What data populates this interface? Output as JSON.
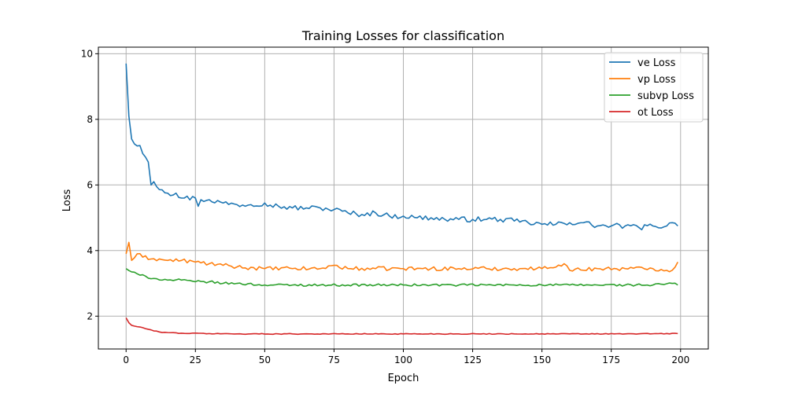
{
  "chart_data": {
    "type": "line",
    "title": "Training Losses for classification",
    "xlabel": "Epoch",
    "ylabel": "Loss",
    "xlim": [
      -10,
      210
    ],
    "ylim": [
      1.0,
      10.2
    ],
    "xticks": [
      0,
      25,
      50,
      75,
      100,
      125,
      150,
      175,
      200
    ],
    "yticks": [
      2,
      4,
      6,
      8,
      10
    ],
    "grid": true,
    "legend_position": "top-right",
    "series": [
      {
        "name": "ve Loss",
        "color": "#1f77b4",
        "anchors": [
          [
            0,
            9.7
          ],
          [
            1,
            8.1
          ],
          [
            2,
            7.4
          ],
          [
            3,
            7.25
          ],
          [
            5,
            7.2
          ],
          [
            7,
            6.85
          ],
          [
            8,
            6.7
          ],
          [
            9,
            6.0
          ],
          [
            10,
            6.1
          ],
          [
            11,
            5.95
          ],
          [
            13,
            5.85
          ],
          [
            15,
            5.75
          ],
          [
            18,
            5.75
          ],
          [
            20,
            5.6
          ],
          [
            25,
            5.6
          ],
          [
            26,
            5.35
          ],
          [
            27,
            5.55
          ],
          [
            30,
            5.55
          ],
          [
            35,
            5.45
          ],
          [
            40,
            5.4
          ],
          [
            45,
            5.4
          ],
          [
            50,
            5.45
          ],
          [
            55,
            5.35
          ],
          [
            60,
            5.3
          ],
          [
            65,
            5.3
          ],
          [
            70,
            5.3
          ],
          [
            75,
            5.25
          ],
          [
            80,
            5.15
          ],
          [
            85,
            5.1
          ],
          [
            90,
            5.15
          ],
          [
            95,
            5.05
          ],
          [
            100,
            5.05
          ],
          [
            105,
            5.0
          ],
          [
            110,
            5.0
          ],
          [
            115,
            4.95
          ],
          [
            120,
            4.95
          ],
          [
            125,
            4.95
          ],
          [
            130,
            4.95
          ],
          [
            135,
            4.95
          ],
          [
            140,
            4.9
          ],
          [
            145,
            4.85
          ],
          [
            150,
            4.8
          ],
          [
            155,
            4.8
          ],
          [
            160,
            4.85
          ],
          [
            165,
            4.85
          ],
          [
            170,
            4.75
          ],
          [
            175,
            4.75
          ],
          [
            180,
            4.75
          ],
          [
            185,
            4.7
          ],
          [
            190,
            4.75
          ],
          [
            195,
            4.75
          ],
          [
            197,
            4.85
          ],
          [
            199,
            4.75
          ]
        ],
        "jitter": 0.08
      },
      {
        "name": "vp Loss",
        "color": "#ff7f0e",
        "anchors": [
          [
            0,
            3.9
          ],
          [
            1,
            4.25
          ],
          [
            2,
            3.7
          ],
          [
            4,
            3.9
          ],
          [
            6,
            3.8
          ],
          [
            10,
            3.75
          ],
          [
            15,
            3.7
          ],
          [
            20,
            3.7
          ],
          [
            25,
            3.65
          ],
          [
            30,
            3.6
          ],
          [
            35,
            3.55
          ],
          [
            40,
            3.5
          ],
          [
            50,
            3.45
          ],
          [
            60,
            3.45
          ],
          [
            70,
            3.45
          ],
          [
            75,
            3.55
          ],
          [
            80,
            3.45
          ],
          [
            90,
            3.45
          ],
          [
            100,
            3.45
          ],
          [
            110,
            3.45
          ],
          [
            120,
            3.45
          ],
          [
            130,
            3.45
          ],
          [
            140,
            3.45
          ],
          [
            150,
            3.45
          ],
          [
            158,
            3.6
          ],
          [
            160,
            3.4
          ],
          [
            170,
            3.45
          ],
          [
            180,
            3.45
          ],
          [
            190,
            3.45
          ],
          [
            197,
            3.4
          ],
          [
            199,
            3.65
          ]
        ],
        "jitter": 0.06
      },
      {
        "name": "subvp Loss",
        "color": "#2ca02c",
        "anchors": [
          [
            0,
            3.45
          ],
          [
            2,
            3.35
          ],
          [
            5,
            3.25
          ],
          [
            10,
            3.15
          ],
          [
            15,
            3.1
          ],
          [
            20,
            3.1
          ],
          [
            25,
            3.05
          ],
          [
            30,
            3.05
          ],
          [
            35,
            3.0
          ],
          [
            40,
            3.0
          ],
          [
            50,
            2.95
          ],
          [
            60,
            2.95
          ],
          [
            70,
            2.95
          ],
          [
            80,
            2.95
          ],
          [
            90,
            2.95
          ],
          [
            100,
            2.95
          ],
          [
            110,
            2.95
          ],
          [
            120,
            2.95
          ],
          [
            130,
            2.95
          ],
          [
            140,
            2.95
          ],
          [
            150,
            2.95
          ],
          [
            160,
            2.95
          ],
          [
            170,
            2.95
          ],
          [
            180,
            2.95
          ],
          [
            190,
            2.95
          ],
          [
            197,
            3.0
          ],
          [
            199,
            2.95
          ]
        ],
        "jitter": 0.035
      },
      {
        "name": "ot Loss",
        "color": "#d62728",
        "anchors": [
          [
            0,
            1.95
          ],
          [
            1,
            1.8
          ],
          [
            2,
            1.72
          ],
          [
            4,
            1.68
          ],
          [
            6,
            1.65
          ],
          [
            8,
            1.6
          ],
          [
            10,
            1.55
          ],
          [
            12,
            1.52
          ],
          [
            15,
            1.5
          ],
          [
            20,
            1.48
          ],
          [
            30,
            1.47
          ],
          [
            40,
            1.46
          ],
          [
            60,
            1.46
          ],
          [
            80,
            1.46
          ],
          [
            100,
            1.46
          ],
          [
            120,
            1.46
          ],
          [
            140,
            1.46
          ],
          [
            160,
            1.46
          ],
          [
            180,
            1.46
          ],
          [
            199,
            1.47
          ]
        ],
        "jitter": 0.012
      }
    ]
  }
}
